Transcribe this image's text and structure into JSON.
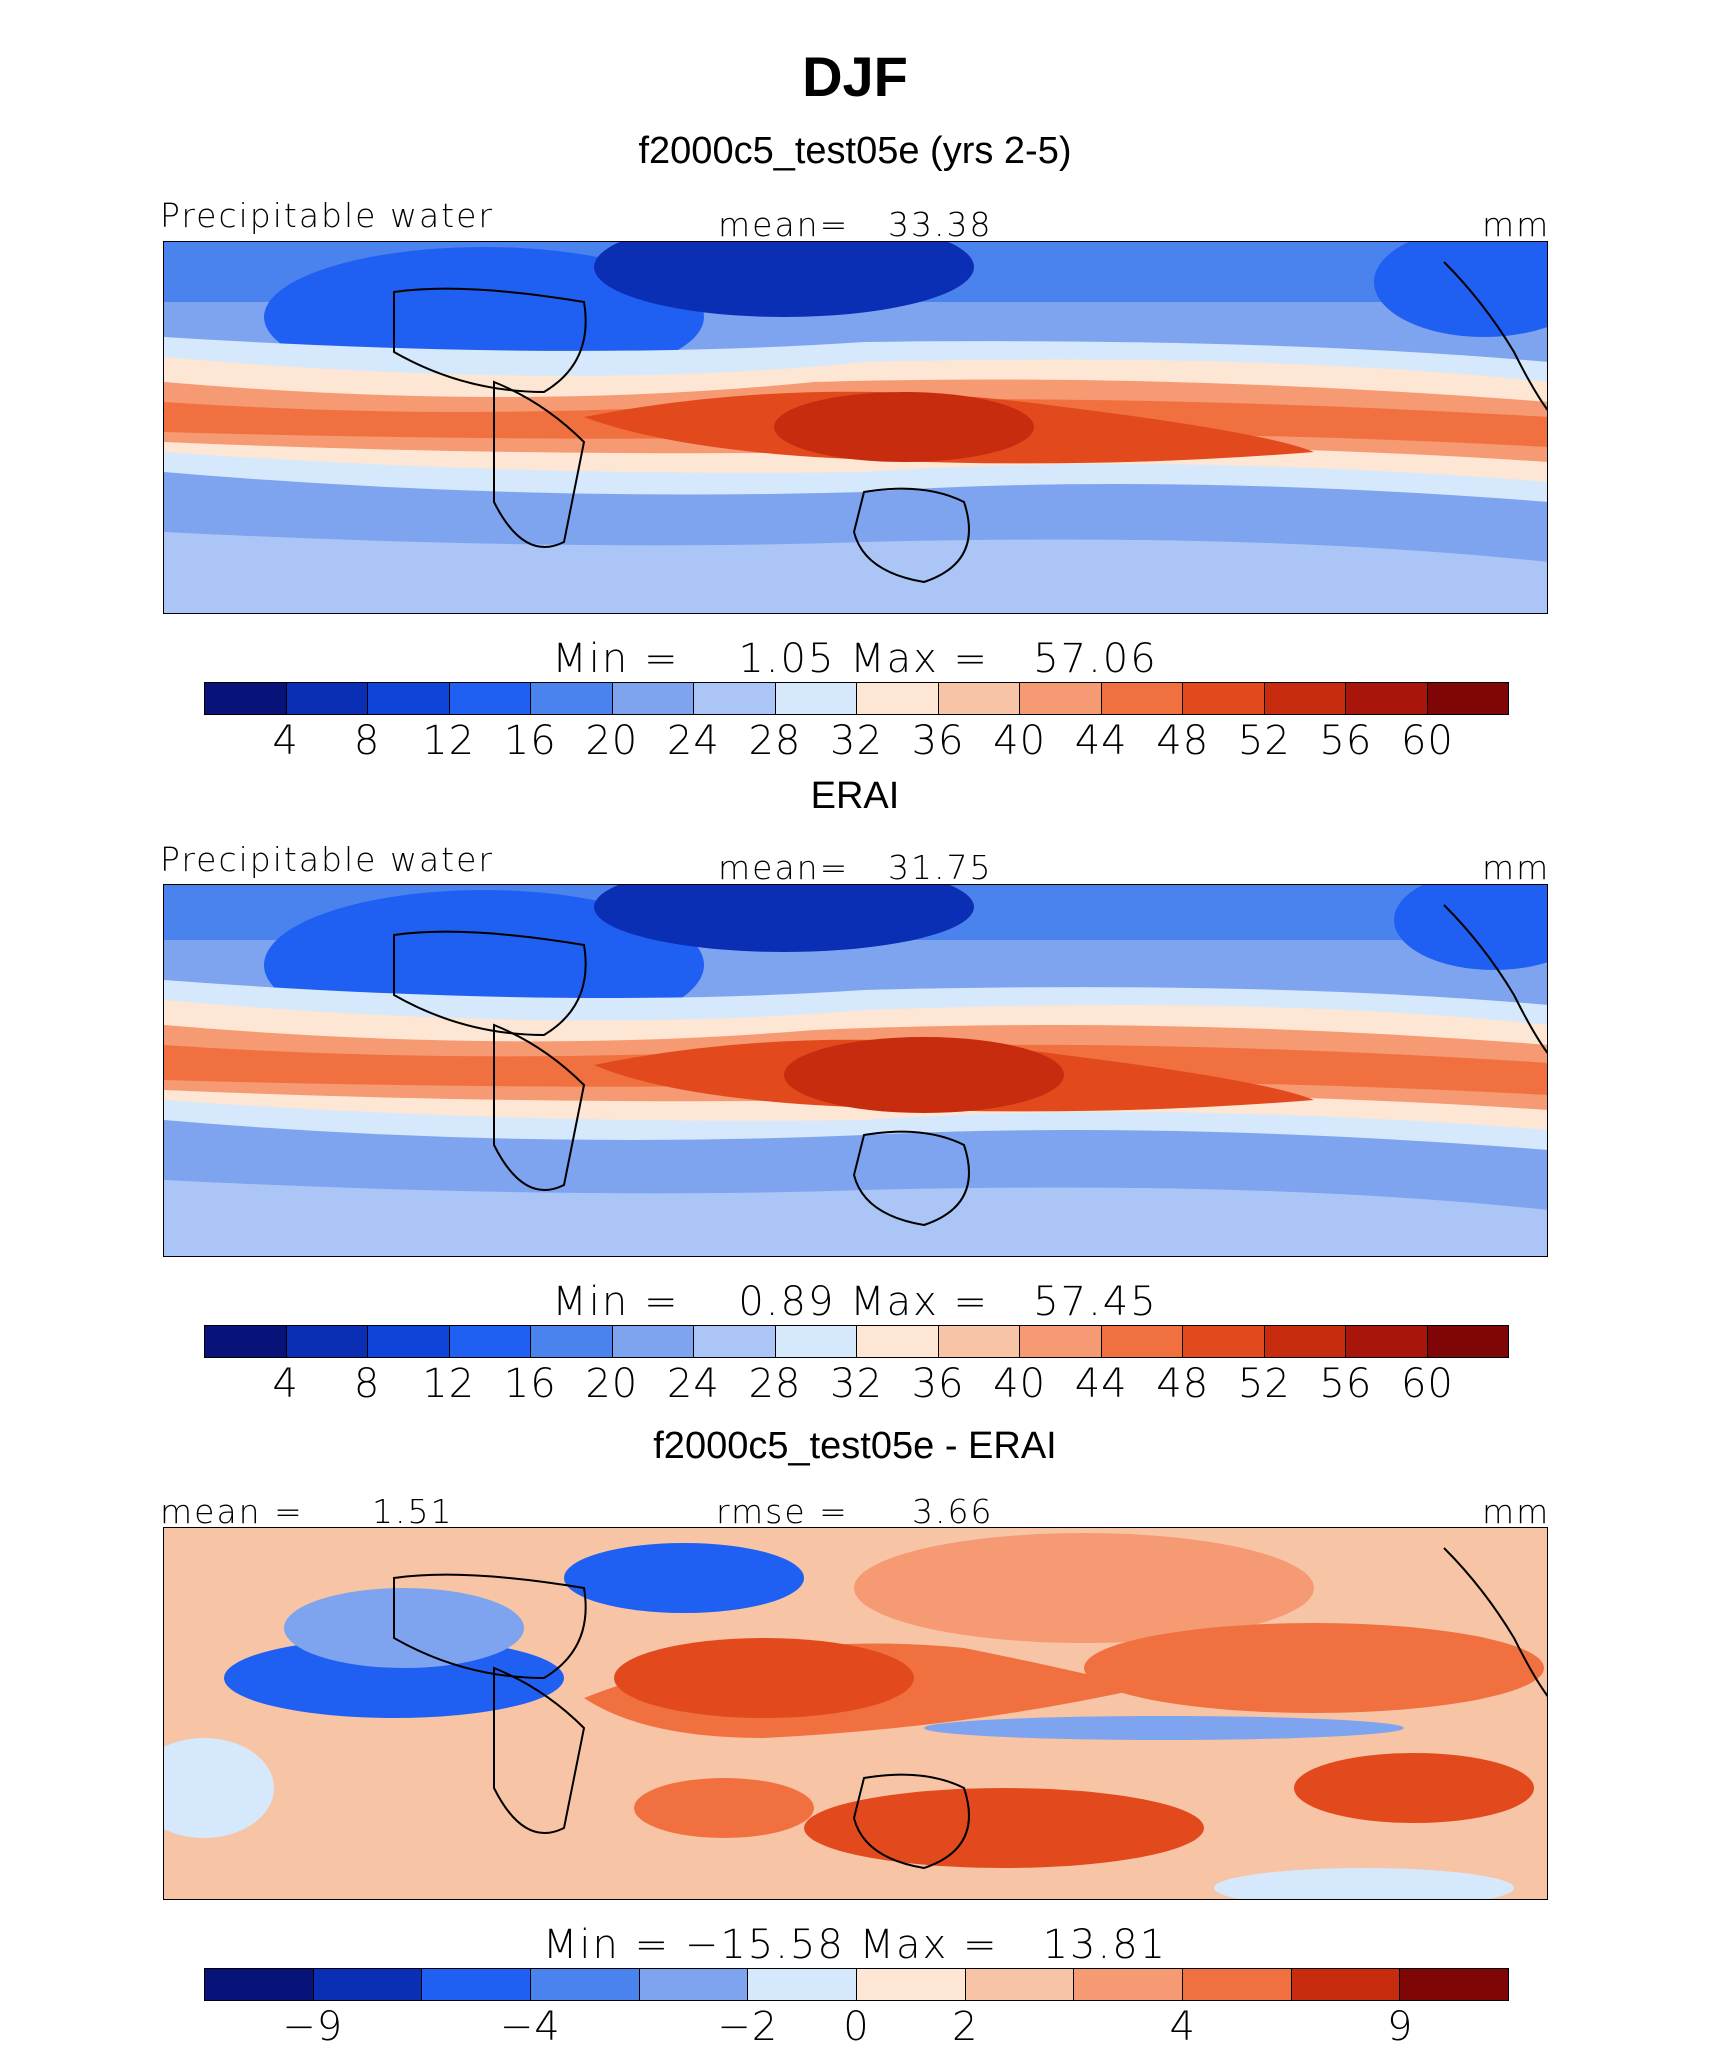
{
  "title": "DJF",
  "panels": [
    {
      "subtitle": "f2000c5_test05e (yrs 2-5)",
      "left_label": "Precipitable water",
      "center_label": "mean=",
      "center_value": "33.38",
      "units": "mm",
      "minmax": "Min =    1.05 Max =   57.06",
      "ticks": [
        "4",
        "8",
        "12",
        "16",
        "20",
        "24",
        "28",
        "32",
        "36",
        "40",
        "44",
        "48",
        "52",
        "56",
        "60"
      ],
      "colors": [
        "#08137a",
        "#0b2fb4",
        "#0e45d8",
        "#1f60f2",
        "#4a82ee",
        "#7ea4f0",
        "#abc6f6",
        "#d6e8fb",
        "#fde6d4",
        "#f8c4a6",
        "#f59a72",
        "#f0713f",
        "#e24a1e",
        "#c72c0e",
        "#a8150a",
        "#7e0606"
      ]
    },
    {
      "subtitle": "ERAI",
      "left_label": "Precipitable water",
      "center_label": "mean=",
      "center_value": "31.75",
      "units": "mm",
      "minmax": "Min =    0.89 Max =   57.45",
      "ticks": [
        "4",
        "8",
        "12",
        "16",
        "20",
        "24",
        "28",
        "32",
        "36",
        "40",
        "44",
        "48",
        "52",
        "56",
        "60"
      ],
      "colors": [
        "#08137a",
        "#0b2fb4",
        "#0e45d8",
        "#1f60f2",
        "#4a82ee",
        "#7ea4f0",
        "#abc6f6",
        "#d6e8fb",
        "#fde6d4",
        "#f8c4a6",
        "#f59a72",
        "#f0713f",
        "#e24a1e",
        "#c72c0e",
        "#a8150a",
        "#7e0606"
      ]
    },
    {
      "subtitle": "f2000c5_test05e - ERAI",
      "left_label": "mean =",
      "left_value": "1.51",
      "center_label": "rmse =",
      "center_value": "3.66",
      "units": "mm",
      "minmax": "Min = −15.58 Max =   13.81",
      "ticks": [
        "−9",
        "−4",
        "−2",
        "0",
        "2",
        "4",
        "9"
      ],
      "colors": [
        "#08137a",
        "#0b2fb4",
        "#1f60f2",
        "#4a82ee",
        "#7ea4f0",
        "#d6e8fb",
        "#fde6d4",
        "#f8c4a6",
        "#f59a72",
        "#f0713f",
        "#c72c0e",
        "#7e0606"
      ]
    }
  ]
}
